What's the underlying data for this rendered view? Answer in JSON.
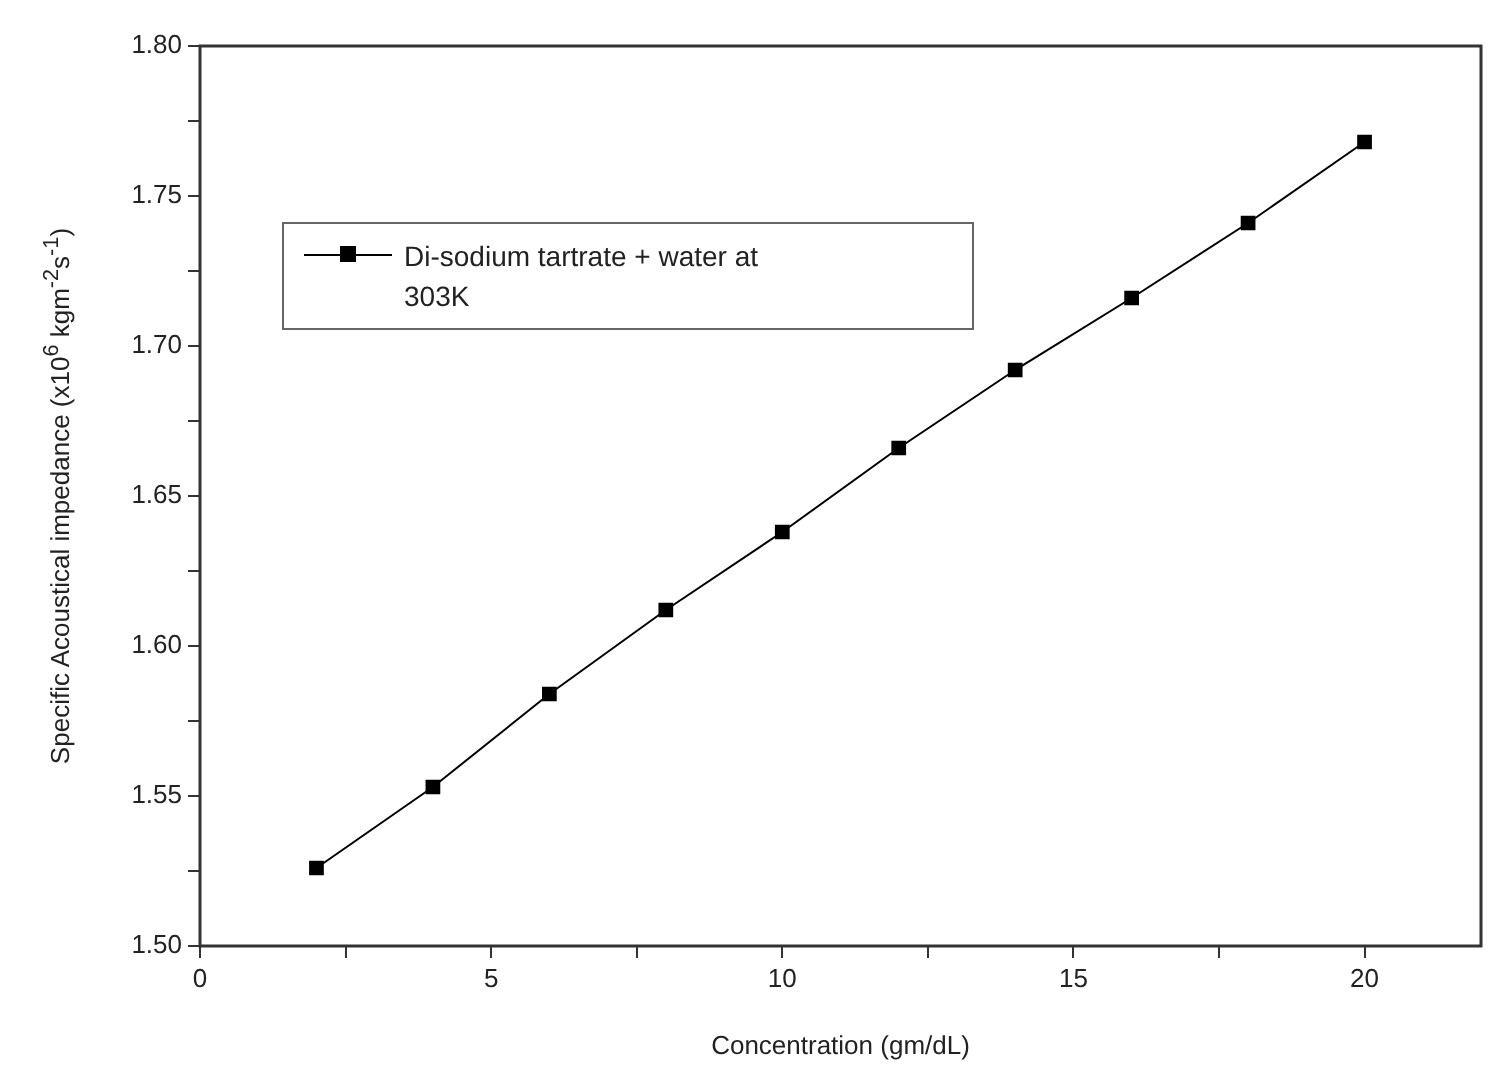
{
  "chart_data": {
    "type": "line",
    "xlabel": "Concentration (gm/dL)",
    "ylabel": "Specific Acoustical impedance (x10$^{6}$ kgm$^{-2}$s$^{-1}$)",
    "x": [
      2,
      4,
      6,
      8,
      10,
      12,
      14,
      16,
      18,
      20
    ],
    "series": [
      {
        "name": "Di-sodium tartrate + water at 303K",
        "color": "#000000",
        "values": [
          1.526,
          1.553,
          1.584,
          1.612,
          1.638,
          1.666,
          1.692,
          1.716,
          1.741,
          1.768
        ]
      }
    ],
    "xlim": [
      0,
      22
    ],
    "xticks": [
      0,
      {
        "value": 2.5,
        "label": null
      },
      5,
      {
        "value": 7.5,
        "label": null
      },
      10,
      {
        "value": 12.5,
        "label": null
      },
      15,
      {
        "value": 17.5,
        "label": null
      },
      20
    ],
    "ylim": [
      1.5,
      1.8
    ],
    "yticks": [
      "1.50",
      {
        "value": 1.525,
        "label": null
      },
      {
        "value": 1.55,
        "label": "1.55"
      },
      {
        "value": 1.575,
        "label": null
      },
      {
        "value": 1.6,
        "label": "1.60"
      },
      {
        "value": 1.625,
        "label": null
      },
      {
        "value": 1.65,
        "label": "1.65"
      },
      {
        "value": 1.675,
        "label": null
      },
      {
        "value": 1.7,
        "label": "1.70"
      },
      {
        "value": 1.725,
        "label": null
      },
      {
        "value": 1.75,
        "label": "1.75"
      },
      {
        "value": 1.775,
        "label": null
      },
      {
        "value": 1.8,
        "label": "1.80"
      }
    ],
    "grid": false,
    "legend": "top left",
    "marker": "square",
    "line_style": "solid"
  }
}
